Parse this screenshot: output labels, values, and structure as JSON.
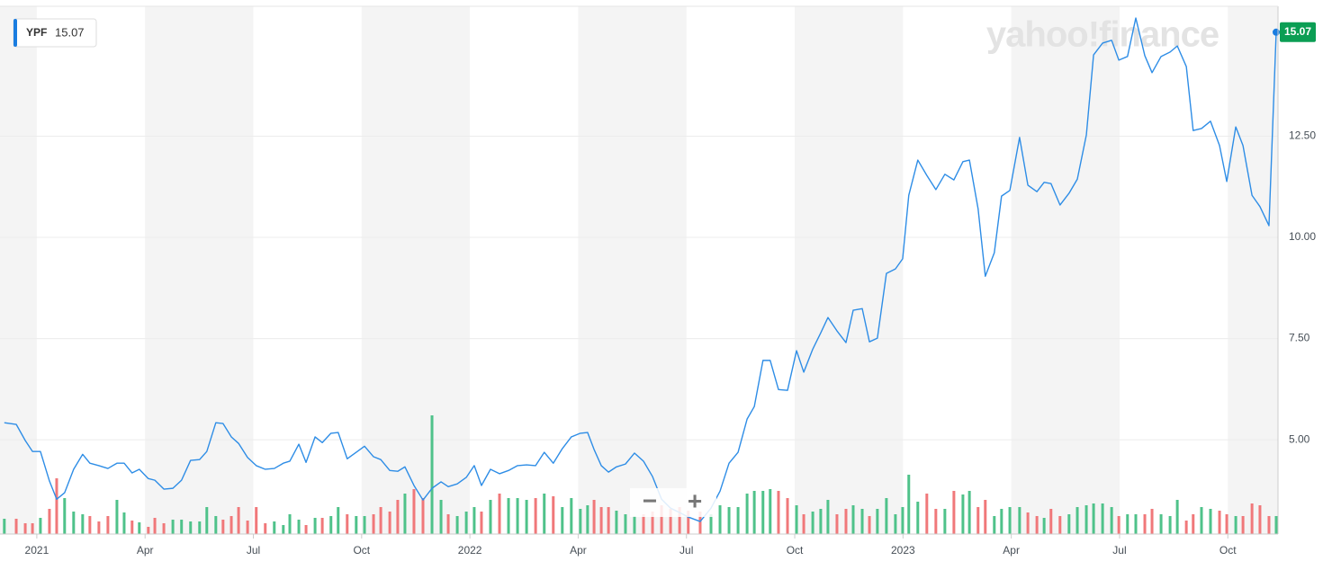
{
  "chart_data": {
    "type": "line",
    "watermark": "yahoo!finance",
    "controls": {
      "zoom_out": "−",
      "zoom_in": "+"
    },
    "x": [
      -0.9,
      -0.57,
      -0.32,
      -0.12,
      0.1,
      0.35,
      0.55,
      0.77,
      1.02,
      1.27,
      1.47,
      1.72,
      1.97,
      2.22,
      2.42,
      2.64,
      2.84,
      3.09,
      3.27,
      3.52,
      3.77,
      4.01,
      4.26,
      4.51,
      4.71,
      4.96,
      5.16,
      5.39,
      5.59,
      5.84,
      6.08,
      6.33,
      6.58,
      6.83,
      7.01,
      7.26,
      7.46,
      7.71,
      7.91,
      8.15,
      8.35,
      8.6,
      8.85,
      9.08,
      9.33,
      9.53,
      9.78,
      10.0,
      10.2,
      10.45,
      10.7,
      10.95,
      11.2,
      11.4,
      11.65,
      11.9,
      12.12,
      12.32,
      12.57,
      12.82,
      13.07,
      13.32,
      13.57,
      13.82,
      14.06,
      14.31,
      14.56,
      14.81,
      15.06,
      15.26,
      15.44,
      15.64,
      15.84,
      16.06,
      16.31,
      16.56,
      16.81,
      17.06,
      17.31,
      17.56,
      17.81,
      18.05,
      18.38,
      18.68,
      18.93,
      19.18,
      19.43,
      19.68,
      19.88,
      20.12,
      20.32,
      20.55,
      20.8,
      21.05,
      21.25,
      21.5,
      21.72,
      21.92,
      22.17,
      22.42,
      22.62,
      22.87,
      23.07,
      23.29,
      23.54,
      23.79,
      23.99,
      24.16,
      24.41,
      24.66,
      24.91,
      25.16,
      25.41,
      25.66,
      25.84,
      26.08,
      26.28,
      26.53,
      26.73,
      26.96,
      27.23,
      27.46,
      27.71,
      27.91,
      28.1,
      28.35,
      28.6,
      28.83,
      29.08,
      29.28,
      29.53,
      29.78,
      29.98,
      30.22,
      30.45,
      30.7,
      30.9,
      31.15,
      31.4,
      31.6,
      31.85,
      32.04,
      32.27,
      32.52,
      32.77,
      32.97,
      33.22,
      33.42,
      33.67,
      33.89,
      34.14,
      34.34
    ],
    "series": [
      {
        "name": "YPF",
        "color": "#2e8de6",
        "values": [
          5.42,
          5.38,
          4.98,
          4.71,
          4.71,
          3.98,
          3.53,
          3.69,
          4.27,
          4.64,
          4.42,
          4.36,
          4.29,
          4.42,
          4.42,
          4.18,
          4.27,
          4.04,
          4.0,
          3.78,
          3.8,
          4.0,
          4.49,
          4.51,
          4.71,
          5.42,
          5.4,
          5.07,
          4.91,
          4.56,
          4.36,
          4.27,
          4.29,
          4.42,
          4.47,
          4.89,
          4.44,
          5.07,
          4.93,
          5.16,
          5.18,
          4.53,
          4.69,
          4.84,
          4.58,
          4.51,
          4.24,
          4.22,
          4.33,
          3.87,
          3.51,
          3.8,
          3.96,
          3.84,
          3.91,
          4.07,
          4.36,
          3.87,
          4.27,
          4.16,
          4.24,
          4.36,
          4.38,
          4.36,
          4.69,
          4.42,
          4.78,
          5.07,
          5.16,
          5.18,
          4.76,
          4.36,
          4.2,
          4.33,
          4.4,
          4.67,
          4.47,
          4.09,
          3.53,
          3.31,
          3.2,
          3.09,
          2.98,
          3.31,
          3.73,
          4.42,
          4.69,
          5.51,
          5.82,
          6.96,
          6.96,
          6.24,
          6.22,
          7.2,
          6.67,
          7.24,
          7.64,
          8.02,
          7.69,
          7.4,
          8.2,
          8.24,
          7.42,
          7.51,
          9.11,
          9.22,
          9.47,
          11.04,
          11.91,
          11.53,
          11.18,
          11.56,
          11.42,
          11.87,
          11.91,
          10.71,
          9.04,
          9.62,
          11.02,
          11.16,
          12.47,
          11.29,
          11.13,
          11.36,
          11.33,
          10.8,
          11.09,
          11.44,
          12.53,
          14.51,
          14.8,
          14.87,
          14.38,
          14.47,
          15.42,
          14.49,
          14.07,
          14.47,
          14.58,
          14.73,
          14.22,
          12.64,
          12.69,
          12.87,
          12.27,
          11.38,
          12.73,
          12.27,
          11.04,
          10.76,
          10.29,
          15.07
        ]
      }
    ],
    "volume": {
      "up_color": "#4fc28a",
      "down_color": "#f0787a",
      "values": [
        17,
        17,
        12,
        12,
        18,
        28,
        62,
        40,
        25,
        22,
        20,
        14,
        20,
        38,
        24,
        15,
        13,
        8,
        18,
        12,
        16,
        16,
        14,
        14,
        30,
        20,
        16,
        20,
        30,
        15,
        30,
        12,
        14,
        10,
        22,
        16,
        10,
        18,
        18,
        20,
        30,
        22,
        20,
        20,
        22,
        30,
        25,
        38,
        45,
        50,
        40,
        132,
        38,
        22,
        20,
        25,
        30,
        25,
        38,
        45,
        40,
        40,
        38,
        40,
        45,
        42,
        30,
        40,
        28,
        32,
        38,
        30,
        30,
        26,
        22,
        20,
        22,
        25,
        32,
        28,
        30,
        26,
        25,
        22,
        32,
        30,
        30,
        45,
        48,
        48,
        50,
        48,
        40,
        32,
        22,
        25,
        28,
        38,
        22,
        28,
        32,
        28,
        20,
        28,
        40,
        22,
        30,
        66,
        36,
        45,
        28,
        28,
        48,
        44,
        48,
        30,
        38,
        20,
        28,
        30,
        30,
        24,
        20,
        18,
        28,
        20,
        22,
        30,
        32,
        34,
        34,
        30,
        20,
        22,
        22,
        22,
        28,
        22,
        20,
        38,
        15,
        22,
        30,
        28,
        26,
        22,
        20,
        20,
        34,
        32,
        20,
        20
      ]
    },
    "xlim": [
      -1.02,
      34.39
    ],
    "xticks": [
      {
        "value": 0,
        "label": "2021"
      },
      {
        "value": 3,
        "label": "Apr"
      },
      {
        "value": 6,
        "label": "Jul"
      },
      {
        "value": 9,
        "label": "Oct"
      },
      {
        "value": 12,
        "label": "2022"
      },
      {
        "value": 15,
        "label": "Apr"
      },
      {
        "value": 18,
        "label": "Jul"
      },
      {
        "value": 21,
        "label": "Oct"
      },
      {
        "value": 24,
        "label": "2023"
      },
      {
        "value": 27,
        "label": "Apr"
      },
      {
        "value": 30,
        "label": "Jul"
      },
      {
        "value": 33,
        "label": "Oct"
      }
    ],
    "ylim": [
      2.67,
      15.71
    ],
    "yticks": [
      {
        "value": 5,
        "label": "5.00"
      },
      {
        "value": 7.5,
        "label": "7.50"
      },
      {
        "value": 10,
        "label": "10.00"
      },
      {
        "value": 12.5,
        "label": "12.50"
      }
    ],
    "grid": true
  }
}
